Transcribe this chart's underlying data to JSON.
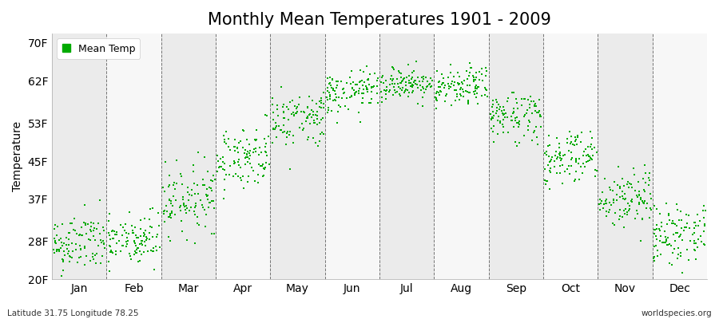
{
  "title": "Monthly Mean Temperatures 1901 - 2009",
  "ylabel": "Temperature",
  "footer_left": "Latitude 31.75 Longitude 78.25",
  "footer_right": "worldspecies.org",
  "legend_label": "Mean Temp",
  "ytick_labels": [
    "20F",
    "28F",
    "37F",
    "45F",
    "53F",
    "62F",
    "70F"
  ],
  "ytick_values": [
    20,
    28,
    37,
    45,
    53,
    62,
    70
  ],
  "ylim": [
    20,
    72
  ],
  "months": [
    "Jan",
    "Feb",
    "Mar",
    "Apr",
    "May",
    "Jun",
    "Jul",
    "Aug",
    "Sep",
    "Oct",
    "Nov",
    "Dec"
  ],
  "dot_color": "#00aa00",
  "background_color": "#ffffff",
  "band_colors": [
    "#ebebeb",
    "#f7f7f7"
  ],
  "title_fontsize": 15,
  "axis_fontsize": 10,
  "legend_fontsize": 9,
  "monthly_means": [
    27.5,
    28.0,
    37.0,
    46.0,
    54.0,
    59.5,
    61.5,
    60.5,
    54.5,
    46.0,
    37.0,
    29.5
  ],
  "monthly_std": [
    3.2,
    3.0,
    3.5,
    3.2,
    3.0,
    2.2,
    1.8,
    2.0,
    2.8,
    3.0,
    3.2,
    3.2
  ],
  "n_years": 109,
  "seed": 42
}
